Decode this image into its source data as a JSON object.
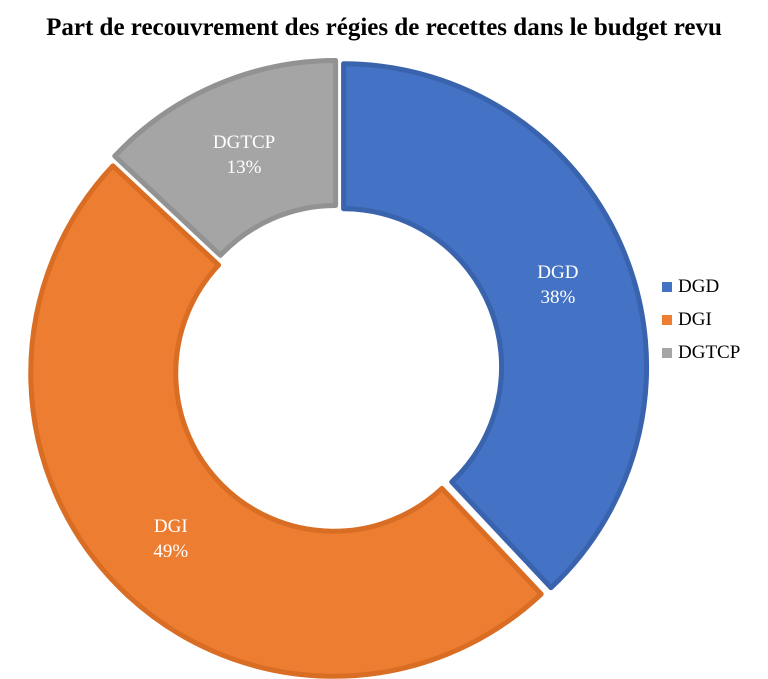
{
  "chart_data": {
    "type": "pie",
    "variant": "donut",
    "title": "Part de recouvrement des régies de recettes dans le budget revu",
    "slices": [
      {
        "label": "DGD",
        "value": 38,
        "percent_label": "38%",
        "color": "#4472C4",
        "border": "#3A63AE"
      },
      {
        "label": "DGI",
        "value": 49,
        "percent_label": "49%",
        "color": "#ED7D31",
        "border": "#D96D24"
      },
      {
        "label": "DGTCP",
        "value": 13,
        "percent_label": "13%",
        "color": "#A5A5A5",
        "border": "#929292"
      }
    ],
    "legend_position": "right",
    "data_label_color": "#ffffff"
  }
}
